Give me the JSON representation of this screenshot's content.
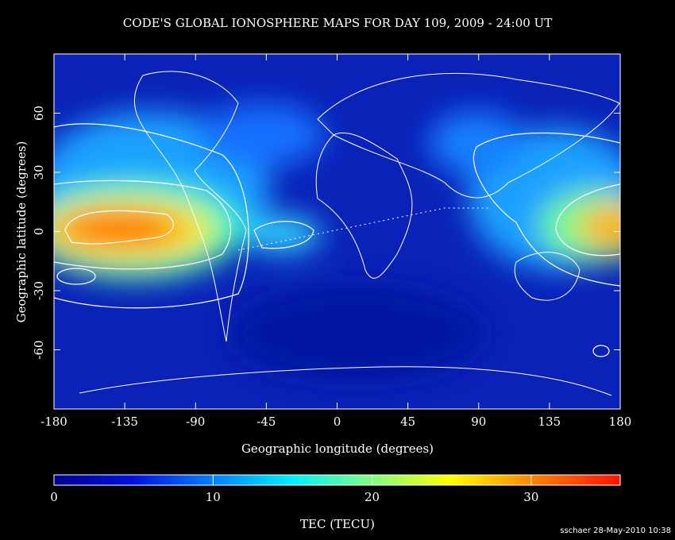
{
  "chart_data": {
    "type": "map",
    "title": "CODE'S GLOBAL IONOSPHERE MAPS FOR DAY 109, 2009 - 24:00 UT",
    "x_label": "Geographic longitude (degrees)",
    "y_label": "Geographic latitude (degrees)",
    "xlim": [
      -180,
      180
    ],
    "xticks": [
      -180,
      -135,
      -90,
      -45,
      0,
      45,
      90,
      135,
      180
    ],
    "ylim": [
      -90,
      90
    ],
    "yticks": [
      -60,
      -30,
      0,
      30,
      60
    ],
    "colorbar": {
      "label": "TEC (TECU)",
      "lim": [
        0,
        35.6
      ],
      "ticks": [
        0,
        10,
        20,
        30
      ]
    },
    "footer": "sschaer 28-May-2010 10:38"
  }
}
